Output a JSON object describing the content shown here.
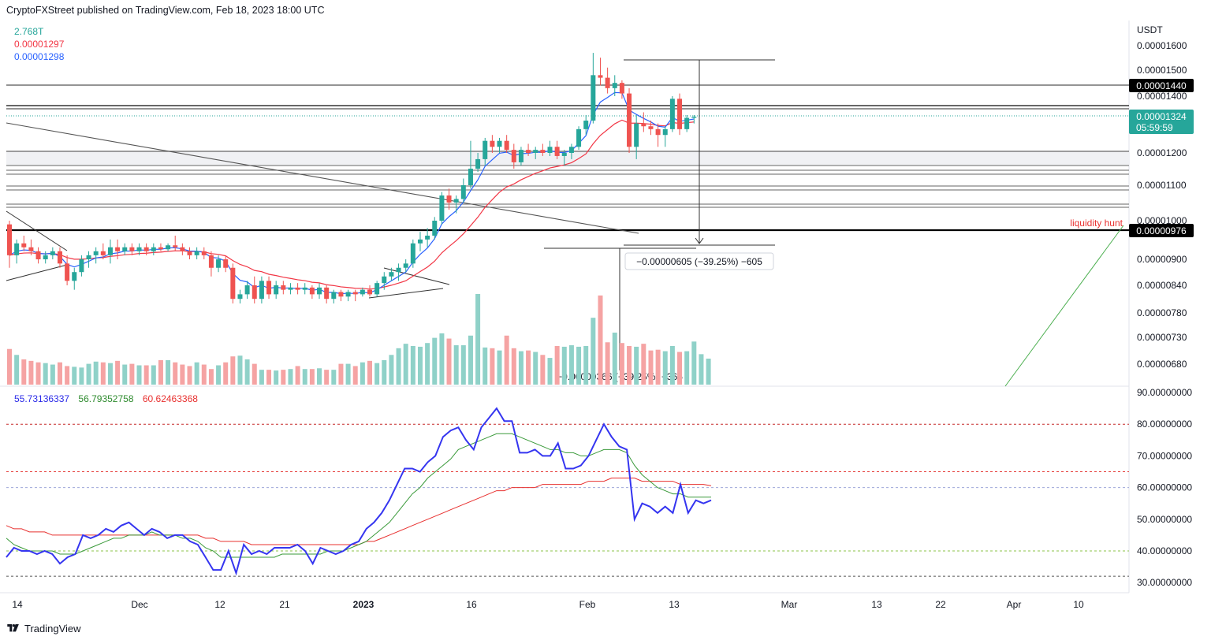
{
  "header": {
    "published_text": "CryptoFXStreet published on TradingView.com, Feb 18, 2023 18:00 UTC"
  },
  "legend": {
    "volume": "2.768T",
    "ma_red": "0.00001297",
    "ma_blue": "0.00001298",
    "volume_color": "#26a69a",
    "ma_red_color": "#f23645",
    "ma_blue_color": "#2962ff"
  },
  "rsi_legend": {
    "rsi": "55.73136337",
    "rsi_ma": "56.79352758",
    "rsi_ma2": "60.62463368",
    "rsi_color": "#2a2ae8",
    "rsi_ma_color": "#2e8b2e",
    "rsi_ma2_color": "#e8302f"
  },
  "footer": {
    "brand": "TradingView"
  },
  "colors": {
    "up": "#26a69a",
    "down": "#ef5350",
    "vol_up": "#8fd1c8",
    "vol_down": "#f5a3a3"
  },
  "chart_data": {
    "type": "candlestick",
    "symbol_currency": "USDT",
    "price_axis": {
      "ticks": [
        "0.00001600",
        "0.00001500",
        "0.00001400",
        "0.00001200",
        "0.00001100",
        "0.00001000",
        "0.00000900",
        "0.00000840",
        "0.00000780",
        "0.00000730",
        "0.00000680"
      ],
      "tick_values": [
        1.6e-05,
        1.5e-05,
        1.4e-05,
        1.2e-05,
        1.1e-05,
        1e-05,
        9e-06,
        8.4e-06,
        7.8e-06,
        7.3e-06,
        6.8e-06
      ]
    },
    "time_axis": {
      "labels": [
        "14",
        "Dec",
        "12",
        "21",
        "2023",
        "16",
        "Feb",
        "13",
        "Mar",
        "13",
        "22",
        "Apr",
        "10"
      ],
      "bold_label": "2023"
    },
    "badges": {
      "resistance": "0.00001440",
      "current_price": "0.00001324",
      "countdown": "05:59:59",
      "support": "0.00000976"
    },
    "annotations": {
      "liquidity": "liquidity hunt",
      "measure_upper": "−0.00000605 (−39.25%) −605",
      "measure_lower": "−0.00000366 (−39.25%) −366"
    },
    "rsi_axis": {
      "ticks": [
        "90.00000000",
        "80.00000000",
        "70.00000000",
        "60.00000000",
        "50.00000000",
        "40.00000000",
        "30.00000000"
      ],
      "tick_values": [
        90,
        80,
        70,
        60,
        50,
        40,
        30
      ],
      "levels": [
        80,
        65,
        60,
        40,
        32
      ]
    },
    "candles": [
      [
        9.9e-06,
        1e-05,
        8.8e-06,
        9.1e-06
      ],
      [
        9.1e-06,
        9.5e-06,
        8.9e-06,
        9.4e-06
      ],
      [
        9.4e-06,
        9.6e-06,
        9.2e-06,
        9.3e-06
      ],
      [
        9.3e-06,
        9.5e-06,
        9.1e-06,
        9.2e-06
      ],
      [
        9.2e-06,
        9.3e-06,
        8.9e-06,
        9e-06
      ],
      [
        9e-06,
        9.2e-06,
        8.9e-06,
        9.1e-06
      ],
      [
        9.1e-06,
        9.3e-06,
        9e-06,
        9.2e-06
      ],
      [
        9.2e-06,
        9.3e-06,
        8.8e-06,
        8.9e-06
      ],
      [
        8.9e-06,
        9.1e-06,
        8.4e-06,
        8.5e-06
      ],
      [
        8.5e-06,
        8.8e-06,
        8.3e-06,
        8.7e-06
      ],
      [
        8.7e-06,
        9.1e-06,
        8.6e-06,
        9e-06
      ],
      [
        9e-06,
        9.2e-06,
        8.8e-06,
        9.1e-06
      ],
      [
        9.1e-06,
        9.3e-06,
        8.9e-06,
        9.2e-06
      ],
      [
        9.2e-06,
        9.4e-06,
        9e-06,
        9.1e-06
      ],
      [
        9.1e-06,
        9.5e-06,
        8.9e-06,
        9.3e-06
      ],
      [
        9.3e-06,
        9.5e-06,
        9e-06,
        9.2e-06
      ],
      [
        9.2e-06,
        9.4e-06,
        9.1e-06,
        9.3e-06
      ],
      [
        9.3e-06,
        9.4e-06,
        9.1e-06,
        9.2e-06
      ],
      [
        9.2e-06,
        9.4e-06,
        9.1e-06,
        9.3e-06
      ],
      [
        9.3e-06,
        9.4e-06,
        9.1e-06,
        9.2e-06
      ],
      [
        9.2e-06,
        9.4e-06,
        9.1e-06,
        9.3e-06
      ],
      [
        9.3e-06,
        9.4e-06,
        9.2e-06,
        9.25e-06
      ],
      [
        9.25e-06,
        9.4e-06,
        9.2e-06,
        9.35e-06
      ],
      [
        9.35e-06,
        9.6e-06,
        9.2e-06,
        9.3e-06
      ],
      [
        9.3e-06,
        9.4e-06,
        9.1e-06,
        9.2e-06
      ],
      [
        9.2e-06,
        9.3e-06,
        9e-06,
        9.1e-06
      ],
      [
        9.1e-06,
        9.3e-06,
        9e-06,
        9.2e-06
      ],
      [
        9.2e-06,
        9.3e-06,
        9e-06,
        9.1e-06
      ],
      [
        9.1e-06,
        9.2e-06,
        8.6e-06,
        8.8e-06
      ],
      [
        8.8e-06,
        9.1e-06,
        8.7e-06,
        9e-06
      ],
      [
        9e-06,
        9.1e-06,
        8.7e-06,
        8.8e-06
      ],
      [
        8.8e-06,
        8.9e-06,
        8e-06,
        8.1e-06
      ],
      [
        8.1e-06,
        8.3e-06,
        8e-06,
        8.2e-06
      ],
      [
        8.2e-06,
        8.5e-06,
        8.1e-06,
        8.4e-06
      ],
      [
        8.4e-06,
        8.6e-06,
        8e-06,
        8.1e-06
      ],
      [
        8.1e-06,
        8.6e-06,
        8e-06,
        8.5e-06
      ],
      [
        8.5e-06,
        8.6e-06,
        8.1e-06,
        8.2e-06
      ],
      [
        8.2e-06,
        8.5e-06,
        8.1e-06,
        8.4e-06
      ],
      [
        8.4e-06,
        8.5e-06,
        8.2e-06,
        8.3e-06
      ],
      [
        8.3e-06,
        8.45e-06,
        8.2e-06,
        8.35e-06
      ],
      [
        8.35e-06,
        8.45e-06,
        8.2e-06,
        8.3e-06
      ],
      [
        8.3e-06,
        8.45e-06,
        8.2e-06,
        8.35e-06
      ],
      [
        8.35e-06,
        8.4e-06,
        8.1e-06,
        8.2e-06
      ],
      [
        8.2e-06,
        8.45e-06,
        8.1e-06,
        8.35e-06
      ],
      [
        8.35e-06,
        8.4e-06,
        8e-06,
        8.1e-06
      ],
      [
        8.1e-06,
        8.3e-06,
        8e-06,
        8.25e-06
      ],
      [
        8.25e-06,
        8.3e-06,
        8.05e-06,
        8.15e-06
      ],
      [
        8.15e-06,
        8.3e-06,
        8.05e-06,
        8.25e-06
      ],
      [
        8.25e-06,
        8.3e-06,
        8.05e-06,
        8.2e-06
      ],
      [
        8.2e-06,
        8.35e-06,
        8.15e-06,
        8.3e-06
      ],
      [
        8.3e-06,
        8.4e-06,
        8.15e-06,
        8.2e-06
      ],
      [
        8.2e-06,
        8.5e-06,
        8.15e-06,
        8.45e-06
      ],
      [
        8.45e-06,
        8.7e-06,
        8.3e-06,
        8.6e-06
      ],
      [
        8.6e-06,
        8.8e-06,
        8.5e-06,
        8.7e-06
      ],
      [
        8.7e-06,
        8.9e-06,
        8.5e-06,
        8.8e-06
      ],
      [
        8.8e-06,
        9e-06,
        8.7e-06,
        8.9e-06
      ],
      [
        8.9e-06,
        9.5e-06,
        8.8e-06,
        9.4e-06
      ],
      [
        9.4e-06,
        9.7e-06,
        9.2e-06,
        9.5e-06
      ],
      [
        9.5e-06,
        9.8e-06,
        9.3e-06,
        9.6e-06
      ],
      [
        9.6e-06,
        1.01e-05,
        9.5e-06,
        1e-05
      ],
      [
        1e-05,
        1.08e-05,
        9.9e-06,
        1.07e-05
      ],
      [
        1.07e-05,
        1.09e-05,
        1.03e-05,
        1.05e-05
      ],
      [
        1.05e-05,
        1.07e-05,
        1.02e-05,
        1.06e-05
      ],
      [
        1.06e-05,
        1.12e-05,
        1.05e-05,
        1.1e-05
      ],
      [
        1.1e-05,
        1.24e-05,
        1.09e-05,
        1.15e-05
      ],
      [
        1.15e-05,
        1.2e-05,
        1.14e-05,
        1.18e-05
      ],
      [
        1.18e-05,
        1.25e-05,
        1.16e-05,
        1.24e-05
      ],
      [
        1.24e-05,
        1.26e-05,
        1.2e-05,
        1.22e-05
      ],
      [
        1.22e-05,
        1.25e-05,
        1.2e-05,
        1.24e-05
      ],
      [
        1.24e-05,
        1.26e-05,
        1.2e-05,
        1.21e-05
      ],
      [
        1.21e-05,
        1.23e-05,
        1.15e-05,
        1.17e-05
      ],
      [
        1.17e-05,
        1.22e-05,
        1.16e-05,
        1.21e-05
      ],
      [
        1.21e-05,
        1.23e-05,
        1.19e-05,
        1.2e-05
      ],
      [
        1.2e-05,
        1.22e-05,
        1.18e-05,
        1.21e-05
      ],
      [
        1.21e-05,
        1.23e-05,
        1.19e-05,
        1.2e-05
      ],
      [
        1.2e-05,
        1.24e-05,
        1.19e-05,
        1.22e-05
      ],
      [
        1.22e-05,
        1.24e-05,
        1.18e-05,
        1.19e-05
      ],
      [
        1.19e-05,
        1.21e-05,
        1.16e-05,
        1.2e-05
      ],
      [
        1.2e-05,
        1.23e-05,
        1.18e-05,
        1.22e-05
      ],
      [
        1.22e-05,
        1.29e-05,
        1.21e-05,
        1.28e-05
      ],
      [
        1.28e-05,
        1.33e-05,
        1.26e-05,
        1.31e-05
      ],
      [
        1.31e-05,
        1.57e-05,
        1.3e-05,
        1.48e-05
      ],
      [
        1.48e-05,
        1.55e-05,
        1.44e-05,
        1.47e-05
      ],
      [
        1.47e-05,
        1.51e-05,
        1.41e-05,
        1.43e-05
      ],
      [
        1.43e-05,
        1.48e-05,
        1.4e-05,
        1.45e-05
      ],
      [
        1.45e-05,
        1.46e-05,
        1.39e-05,
        1.41e-05
      ],
      [
        1.41e-05,
        1.43e-05,
        1.2e-05,
        1.22e-05
      ],
      [
        1.22e-05,
        1.33e-05,
        1.18e-05,
        1.3e-05
      ],
      [
        1.3e-05,
        1.34e-05,
        1.27e-05,
        1.29e-05
      ],
      [
        1.29e-05,
        1.31e-05,
        1.26e-05,
        1.28e-05
      ],
      [
        1.28e-05,
        1.3e-05,
        1.22e-05,
        1.26e-05
      ],
      [
        1.26e-05,
        1.29e-05,
        1.22e-05,
        1.28e-05
      ],
      [
        1.28e-05,
        1.4e-05,
        1.27e-05,
        1.39e-05
      ],
      [
        1.39e-05,
        1.41e-05,
        1.26e-05,
        1.28e-05
      ],
      [
        1.28e-05,
        1.33e-05,
        1.27e-05,
        1.32e-05
      ],
      [
        1.32e-05,
        1.33e-05,
        1.3e-05,
        1.324e-05
      ]
    ],
    "volume": [
      48,
      40,
      34,
      32,
      30,
      29,
      27,
      30,
      25,
      24,
      23,
      28,
      31,
      30,
      29,
      32,
      27,
      28,
      26,
      26,
      26,
      33,
      33,
      30,
      27,
      25,
      30,
      27,
      21,
      26,
      30,
      38,
      39,
      34,
      28,
      20,
      20,
      19,
      20,
      21,
      25,
      21,
      21,
      22,
      20,
      20,
      28,
      28,
      25,
      30,
      32,
      29,
      33,
      40,
      49,
      55,
      52,
      51,
      56,
      63,
      69,
      62,
      53,
      53,
      66,
      122,
      50,
      49,
      46,
      66,
      49,
      45,
      46,
      44,
      40,
      36,
      52,
      51,
      53,
      51,
      52,
      90,
      120,
      57,
      70,
      56,
      52,
      51,
      55,
      46,
      47,
      45,
      52,
      44,
      45,
      58,
      41,
      35
    ],
    "rsi": [
      38,
      41,
      40,
      40,
      39,
      40,
      39,
      36,
      38,
      39,
      45,
      44,
      45,
      47,
      46,
      48,
      49,
      47,
      45,
      47,
      46,
      44,
      45,
      45,
      43,
      42,
      38,
      34,
      34,
      40,
      33,
      42,
      39,
      40,
      39,
      41,
      41,
      41,
      42,
      40,
      36,
      41,
      40,
      39,
      40,
      42,
      43,
      47,
      49,
      52,
      56,
      61,
      66,
      66,
      65,
      68,
      70,
      76,
      78,
      79,
      75,
      72,
      79,
      82,
      85,
      81,
      81,
      71,
      71,
      72,
      70,
      70,
      74,
      66,
      66,
      67,
      70,
      75,
      80,
      76,
      73,
      72,
      50,
      55,
      54,
      52,
      54,
      52,
      61,
      52,
      56,
      55,
      56
    ],
    "rsi_ma": [
      44,
      42,
      41,
      40,
      40,
      40,
      40,
      39,
      39,
      39,
      40,
      41,
      42,
      43,
      44,
      44,
      45,
      45,
      45,
      46,
      45,
      45,
      45,
      44,
      44,
      43,
      41,
      40,
      38,
      38,
      38,
      38,
      38,
      38,
      38,
      38,
      39,
      39,
      39,
      39,
      39,
      39,
      40,
      40,
      40,
      41,
      42,
      43,
      45,
      47,
      49,
      52,
      55,
      58,
      60,
      63,
      65,
      67,
      69,
      72,
      73,
      74,
      75,
      76,
      77,
      77,
      77,
      76,
      75,
      74,
      73,
      72,
      72,
      71,
      71,
      70,
      70,
      71,
      72,
      72,
      72,
      71,
      67,
      64,
      62,
      60,
      59,
      58,
      58,
      57,
      57,
      57,
      57
    ],
    "rsi_ma2": [
      48,
      47,
      47,
      46,
      46,
      46,
      45,
      45,
      45,
      45,
      45,
      45,
      45,
      45,
      45,
      45,
      45,
      45,
      45,
      45,
      45,
      45,
      45,
      45,
      45,
      45,
      44,
      44,
      43,
      43,
      43,
      43,
      42,
      42,
      42,
      42,
      42,
      42,
      42,
      42,
      42,
      42,
      42,
      42,
      42,
      42,
      42,
      43,
      43,
      44,
      45,
      46,
      47,
      48,
      49,
      50,
      51,
      52,
      53,
      54,
      55,
      56,
      57,
      58,
      59,
      59,
      60,
      60,
      60,
      60,
      61,
      61,
      61,
      61,
      61,
      61,
      62,
      62,
      62,
      63,
      63,
      63,
      63,
      62,
      62,
      62,
      62,
      62,
      61,
      61,
      61,
      61,
      60.6
    ]
  }
}
